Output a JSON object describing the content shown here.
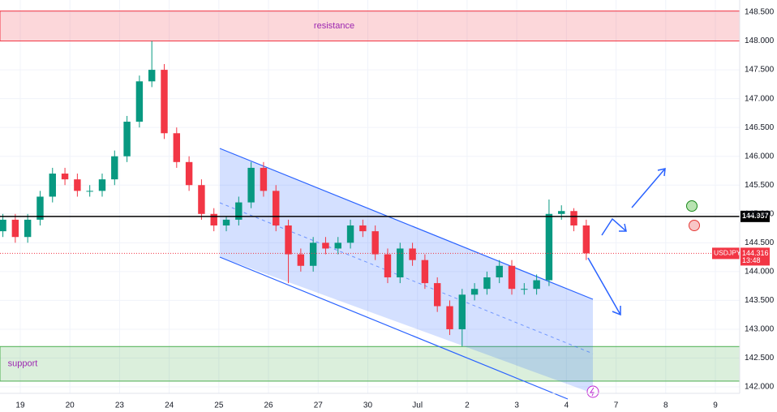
{
  "chart_data": {
    "type": "candlestick",
    "symbol": "USDJPY",
    "x": [
      -0.35,
      -0.1,
      0.15,
      0.4,
      0.65,
      0.9,
      1.15,
      1.4,
      1.65,
      1.9,
      2.15,
      2.4,
      2.65,
      2.9,
      3.15,
      3.4,
      3.65,
      3.9,
      4.15,
      4.4,
      4.65,
      4.9,
      5.15,
      5.4,
      5.65,
      5.9,
      6.15,
      6.4,
      6.65,
      6.9,
      7.15,
      7.4,
      7.65,
      7.9,
      8.15,
      8.4,
      8.65,
      8.9,
      9.15,
      9.4,
      9.65,
      9.9,
      10.15,
      10.4,
      10.65,
      10.9,
      11.15,
      11.4
    ],
    "open": [
      144.7,
      144.9,
      144.6,
      144.9,
      145.3,
      145.7,
      145.6,
      145.4,
      145.4,
      145.6,
      146.0,
      146.6,
      147.3,
      147.5,
      146.4,
      145.9,
      145.5,
      145.0,
      144.8,
      144.9,
      145.2,
      145.8,
      145.4,
      144.8,
      144.3,
      144.1,
      144.5,
      144.4,
      144.5,
      144.8,
      144.7,
      144.3,
      143.9,
      144.4,
      144.2,
      143.8,
      143.4,
      143.0,
      143.6,
      143.7,
      143.9,
      144.1,
      143.7,
      143.7,
      143.85,
      145.0,
      145.05,
      144.8
    ],
    "high": [
      145.0,
      145.0,
      145.0,
      145.4,
      145.8,
      145.8,
      145.7,
      145.5,
      145.7,
      146.1,
      146.7,
      147.4,
      148.0,
      147.6,
      146.5,
      146.0,
      145.6,
      145.1,
      144.95,
      145.3,
      145.9,
      145.9,
      145.5,
      144.9,
      144.4,
      144.6,
      144.6,
      144.6,
      144.9,
      144.9,
      144.8,
      144.4,
      144.5,
      144.5,
      144.3,
      143.9,
      143.5,
      143.7,
      143.8,
      144.0,
      144.2,
      144.2,
      143.8,
      143.95,
      145.25,
      145.15,
      145.1,
      144.9
    ],
    "low": [
      144.6,
      144.5,
      144.5,
      144.8,
      145.2,
      145.5,
      145.3,
      145.3,
      145.3,
      145.5,
      145.9,
      146.5,
      147.2,
      146.3,
      145.8,
      145.4,
      144.9,
      144.7,
      144.7,
      144.8,
      145.1,
      145.3,
      144.7,
      143.8,
      144.0,
      144.0,
      144.3,
      144.3,
      144.4,
      144.6,
      144.2,
      143.8,
      143.8,
      144.1,
      143.7,
      143.3,
      142.9,
      142.7,
      143.5,
      143.6,
      143.8,
      143.6,
      143.6,
      143.6,
      143.75,
      144.9,
      144.7,
      144.2
    ],
    "close": [
      144.9,
      144.6,
      144.9,
      145.3,
      145.7,
      145.6,
      145.4,
      145.4,
      145.6,
      146.0,
      146.6,
      147.3,
      147.5,
      146.4,
      145.9,
      145.5,
      145.0,
      144.8,
      144.9,
      145.2,
      145.8,
      145.4,
      144.8,
      144.3,
      144.1,
      144.5,
      144.4,
      144.5,
      144.8,
      144.7,
      144.3,
      143.9,
      144.4,
      144.2,
      143.8,
      143.4,
      143.0,
      143.6,
      143.7,
      143.9,
      144.1,
      143.7,
      143.7,
      143.85,
      145.0,
      145.05,
      144.8,
      144.316
    ],
    "up_color": "#089981",
    "down_color": "#f23645",
    "xlim": [
      -0.408,
      14.49
    ],
    "xticks": [
      {
        "value": 0,
        "label": "19"
      },
      {
        "value": 1,
        "label": "20"
      },
      {
        "value": 2,
        "label": "23"
      },
      {
        "value": 3,
        "label": "24"
      },
      {
        "value": 4,
        "label": "25"
      },
      {
        "value": 5,
        "label": "26"
      },
      {
        "value": 6,
        "label": "27"
      },
      {
        "value": 7,
        "label": "30"
      },
      {
        "value": 8,
        "label": "Jul"
      },
      {
        "value": 9,
        "label": "2"
      },
      {
        "value": 10,
        "label": "3"
      },
      {
        "value": 11,
        "label": "4"
      },
      {
        "value": 12,
        "label": "7"
      },
      {
        "value": 13,
        "label": "8"
      },
      {
        "value": 14,
        "label": "9"
      }
    ],
    "ylim": [
      141.888,
      148.711
    ],
    "yticks": [
      {
        "value": 142,
        "label": "142.000"
      },
      {
        "value": 142.5,
        "label": "142.500"
      },
      {
        "value": 143,
        "label": "143.000"
      },
      {
        "value": 143.5,
        "label": "143.500"
      },
      {
        "value": 144,
        "label": "144.000"
      },
      {
        "value": 144.5,
        "label": "144.500"
      },
      {
        "value": 145,
        "label": "145.000"
      },
      {
        "value": 145.5,
        "label": "145.500"
      },
      {
        "value": 146,
        "label": "146.000"
      },
      {
        "value": 146.5,
        "label": "146.500"
      },
      {
        "value": 147,
        "label": "147.000"
      },
      {
        "value": 147.5,
        "label": "147.500"
      },
      {
        "value": 148,
        "label": "148.000"
      },
      {
        "value": 148.5,
        "label": "148.500"
      }
    ],
    "grid": true,
    "zones": [
      {
        "label": "resistance",
        "from": 148.0,
        "to": 148.52,
        "color": "#f23645"
      },
      {
        "label": "support",
        "from": 142.1,
        "to": 142.7,
        "color": "#4caf50"
      }
    ],
    "level": 144.957,
    "last_price": 144.316,
    "countdown": "13:48"
  }
}
